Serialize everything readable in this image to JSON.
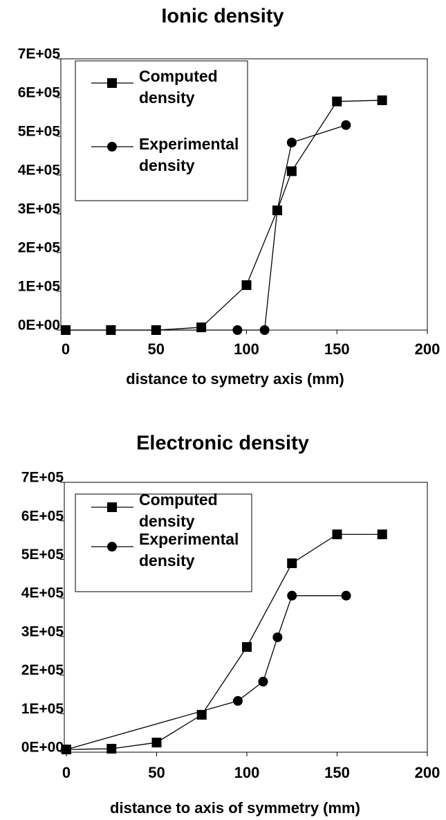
{
  "chart_data": [
    {
      "type": "line",
      "title": "Ionic density",
      "x_label": "distance to symetry axis (mm)",
      "xlim": [
        0,
        200
      ],
      "xticks": [
        0,
        50,
        100,
        150,
        200
      ],
      "ylim": [
        0,
        700000
      ],
      "yticks": [
        {
          "value": 0,
          "label": "0E+00"
        },
        {
          "value": 100000,
          "label": "1E+05"
        },
        {
          "value": 200000,
          "label": "2E+05"
        },
        {
          "value": 300000,
          "label": "3E+05"
        },
        {
          "value": 400000,
          "label": "4E+05"
        },
        {
          "value": 500000,
          "label": "5E+05"
        },
        {
          "value": 600000,
          "label": "6E+05"
        },
        {
          "value": 700000,
          "label": "7E+05"
        }
      ],
      "series": [
        {
          "name": "Computed density",
          "color": "#000000",
          "marker": "square",
          "x": [
            0,
            25,
            50,
            75,
            100,
            117,
            125,
            150,
            175
          ],
          "values": [
            0,
            0,
            0,
            7000,
            116000,
            309000,
            410000,
            590000,
            593000
          ]
        },
        {
          "name": "Experimental density",
          "color": "#000000",
          "marker": "circle",
          "x": [
            0,
            95,
            110,
            117,
            125,
            155
          ],
          "values": [
            0,
            0,
            0,
            309000,
            484000,
            529000
          ]
        }
      ]
    },
    {
      "type": "line",
      "title": "Electronic density",
      "x_label": "distance to axis of symmetry (mm)",
      "xlim": [
        0,
        200
      ],
      "xticks": [
        0,
        50,
        100,
        150,
        200
      ],
      "ylim": [
        0,
        700000
      ],
      "yticks": [
        {
          "value": 0,
          "label": "0E+00"
        },
        {
          "value": 100000,
          "label": "1E+05"
        },
        {
          "value": 200000,
          "label": "2E+05"
        },
        {
          "value": 300000,
          "label": "3E+05"
        },
        {
          "value": 400000,
          "label": "4E+05"
        },
        {
          "value": 500000,
          "label": "5E+05"
        },
        {
          "value": 600000,
          "label": "6E+05"
        },
        {
          "value": 700000,
          "label": "7E+05"
        }
      ],
      "series": [
        {
          "name": "Computed density",
          "color": "#000000",
          "marker": "square",
          "x": [
            0,
            25,
            50,
            75,
            100,
            125,
            150,
            175
          ],
          "values": [
            7000,
            9000,
            25000,
            97000,
            273000,
            490000,
            565000,
            565000
          ]
        },
        {
          "name": "Experimental density",
          "color": "#000000",
          "marker": "circle",
          "x": [
            0,
            95,
            109,
            117,
            125,
            155
          ],
          "values": [
            7000,
            133000,
            183000,
            298000,
            406000,
            406000
          ]
        }
      ]
    }
  ]
}
